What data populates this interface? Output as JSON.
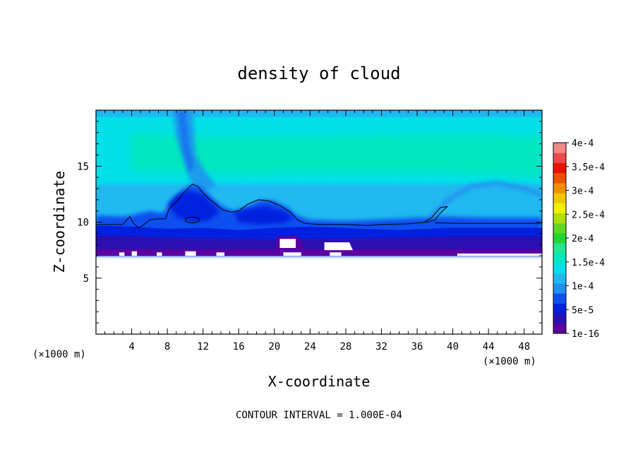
{
  "chart_data": {
    "type": "heatmap",
    "title": "density of cloud",
    "xlabel": "X-coordinate",
    "ylabel": "Z-coordinate",
    "x_unit": "(×1000 m)",
    "y_unit": "(×1000 m)",
    "xlim": [
      0,
      50
    ],
    "ylim": [
      0,
      20
    ],
    "x_ticks": [
      4,
      8,
      12,
      16,
      20,
      24,
      28,
      32,
      36,
      40,
      44,
      48
    ],
    "y_ticks": [
      5,
      10,
      15
    ],
    "contour_note": "CONTOUR INTERVAL = 1.000E-04",
    "colorbar": {
      "placement": "right",
      "labels": [
        "4e-4",
        "3.5e-4",
        "3e-4",
        "2.5e-4",
        "2e-4",
        "1.5e-4",
        "1e-4",
        "5e-5",
        "1e-16"
      ],
      "label_values": [
        0.0004,
        0.00035,
        0.0003,
        0.00025,
        0.0002,
        0.00015,
        0.0001,
        5e-05,
        1e-16
      ],
      "colors_bottom_to_top": [
        "#5a00a0",
        "#2a10b0",
        "#0020e0",
        "#1050f0",
        "#2090f0",
        "#20b8f0",
        "#00e0e8",
        "#00e8c0",
        "#20e890",
        "#20d830",
        "#60d820",
        "#b0e000",
        "#f0f000",
        "#f0c800",
        "#f09000",
        "#f05000",
        "#f01000",
        "#f04848",
        "#f08888"
      ]
    },
    "field": {
      "cloud_base_z": 7.0,
      "contour_z": 9.8,
      "features": [
        {
          "type": "cloud_bulge",
          "x_center": 11,
          "z_top": 13.5
        },
        {
          "type": "cloud_bulge",
          "x_center": 19,
          "z_top": 12
        },
        {
          "type": "arc_plume",
          "x_start": 37,
          "x_end": 50,
          "z_top": 13.5
        },
        {
          "type": "vertical_plume",
          "x_center": 10,
          "z_top": 20
        }
      ]
    }
  }
}
